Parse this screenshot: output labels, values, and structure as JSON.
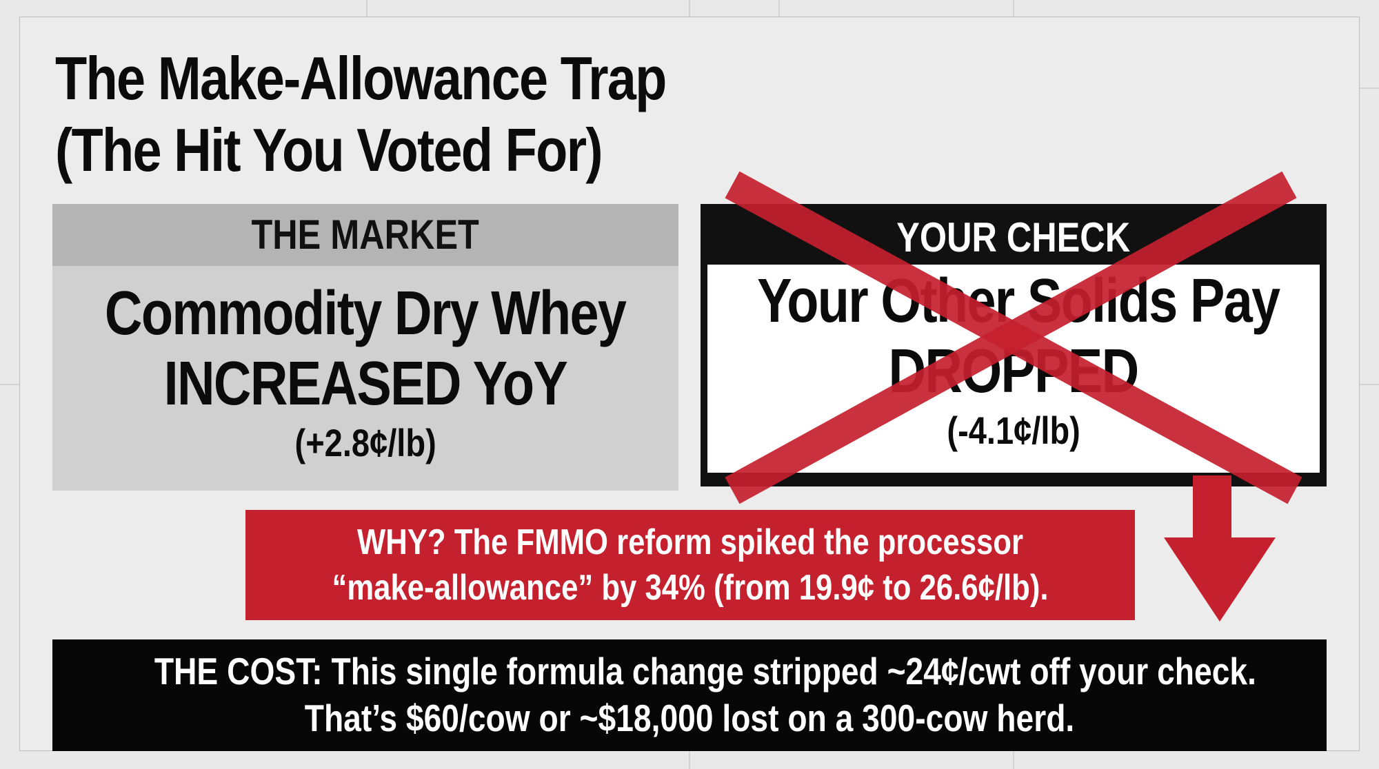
{
  "title_line1": "The Make-Allowance Trap",
  "title_line2": "(The Hit You Voted For)",
  "market": {
    "header": "THE MARKET",
    "line1": "Commodity Dry Whey",
    "line2": "INCREASED YoY",
    "value": "(+2.8¢/lb)"
  },
  "check": {
    "header": "YOUR CHECK",
    "line1": "Your Other Solids Pay",
    "line2": "DROPPED",
    "value": "(-4.1¢/lb)"
  },
  "why": {
    "line1": "WHY? The FMMO reform spiked the processor",
    "line2": "“make-allowance” by 34% (from 19.9¢ to 26.6¢/lb)."
  },
  "cost": {
    "line1": "THE COST: This single formula change stripped ~24¢/cwt off your check.",
    "line2": "That’s $60/cow or ~$18,000 lost on a 300-cow herd."
  },
  "colors": {
    "accent_red": "#c5202e",
    "black": "#070707",
    "market_gray": "#d0d0d0",
    "market_header_gray": "#b4b4b4",
    "background": "#ececec"
  },
  "icons": {
    "cross_mark": "x-mark-icon",
    "down_arrow": "arrow-down-icon"
  }
}
